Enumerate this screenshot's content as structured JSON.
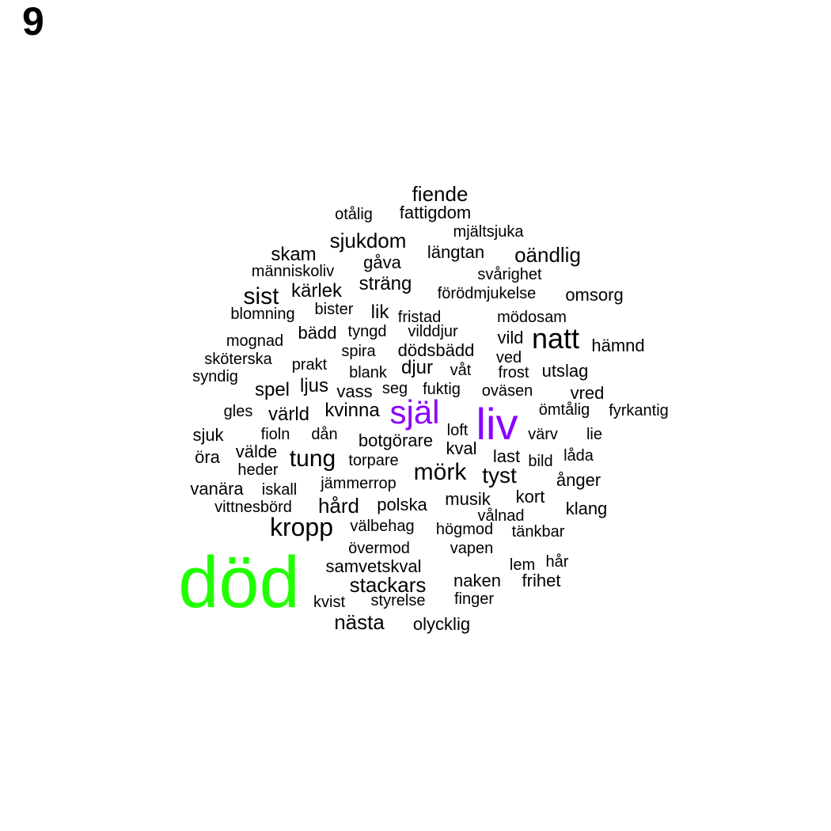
{
  "panel_label": "9",
  "colors": {
    "green": "#22ff00",
    "purple": "#8b00ff",
    "default": "#000000"
  },
  "words": [
    {
      "text": "död",
      "color": "green"
    },
    {
      "text": "liv",
      "color": "purple"
    },
    {
      "text": "själ",
      "color": "purple"
    },
    {
      "text": "natt"
    },
    {
      "text": "kropp"
    },
    {
      "text": "mörk"
    },
    {
      "text": "sist"
    },
    {
      "text": "tung"
    },
    {
      "text": "tyst"
    },
    {
      "text": "fiende"
    },
    {
      "text": "sjukdom"
    },
    {
      "text": "oändlig"
    },
    {
      "text": "stackars"
    },
    {
      "text": "nästa"
    },
    {
      "text": "hård"
    },
    {
      "text": "kvinna"
    },
    {
      "text": "värld"
    },
    {
      "text": "spel"
    },
    {
      "text": "ljus"
    },
    {
      "text": "sträng"
    },
    {
      "text": "kärlek"
    },
    {
      "text": "djur"
    },
    {
      "text": "lik"
    },
    {
      "text": "skam"
    },
    {
      "text": "fattigdom"
    },
    {
      "text": "otålig"
    },
    {
      "text": "mjältsjuka"
    },
    {
      "text": "längtan"
    },
    {
      "text": "gåva"
    },
    {
      "text": "människoliv"
    },
    {
      "text": "svårighet"
    },
    {
      "text": "förödmjukelse"
    },
    {
      "text": "omsorg"
    },
    {
      "text": "blomning"
    },
    {
      "text": "bister"
    },
    {
      "text": "fristad"
    },
    {
      "text": "mödosam"
    },
    {
      "text": "mognad"
    },
    {
      "text": "bädd"
    },
    {
      "text": "tyngd"
    },
    {
      "text": "vilddjur"
    },
    {
      "text": "vild"
    },
    {
      "text": "hämnd"
    },
    {
      "text": "sköterska"
    },
    {
      "text": "spira"
    },
    {
      "text": "dödsbädd"
    },
    {
      "text": "ved"
    },
    {
      "text": "syndig"
    },
    {
      "text": "prakt"
    },
    {
      "text": "blank"
    },
    {
      "text": "våt"
    },
    {
      "text": "frost"
    },
    {
      "text": "utslag"
    },
    {
      "text": "vass"
    },
    {
      "text": "seg"
    },
    {
      "text": "fuktig"
    },
    {
      "text": "oväsen"
    },
    {
      "text": "vred"
    },
    {
      "text": "gles"
    },
    {
      "text": "ömtålig"
    },
    {
      "text": "fyrkantig"
    },
    {
      "text": "sjuk"
    },
    {
      "text": "fioln"
    },
    {
      "text": "dån"
    },
    {
      "text": "botgörare"
    },
    {
      "text": "loft"
    },
    {
      "text": "värv"
    },
    {
      "text": "lie"
    },
    {
      "text": "öra"
    },
    {
      "text": "välde"
    },
    {
      "text": "kval"
    },
    {
      "text": "last"
    },
    {
      "text": "bild"
    },
    {
      "text": "låda"
    },
    {
      "text": "heder"
    },
    {
      "text": "torpare"
    },
    {
      "text": "ånger"
    },
    {
      "text": "vanära"
    },
    {
      "text": "iskall"
    },
    {
      "text": "jämmerrop"
    },
    {
      "text": "musik"
    },
    {
      "text": "kort"
    },
    {
      "text": "vittnesbörd"
    },
    {
      "text": "polska"
    },
    {
      "text": "klang"
    },
    {
      "text": "vålnad"
    },
    {
      "text": "välbehag"
    },
    {
      "text": "högmod"
    },
    {
      "text": "tänkbar"
    },
    {
      "text": "övermod"
    },
    {
      "text": "vapen"
    },
    {
      "text": "samvetskval"
    },
    {
      "text": "lem"
    },
    {
      "text": "hår"
    },
    {
      "text": "naken"
    },
    {
      "text": "frihet"
    },
    {
      "text": "kvist"
    },
    {
      "text": "styrelse"
    },
    {
      "text": "finger"
    },
    {
      "text": "olycklig"
    }
  ]
}
